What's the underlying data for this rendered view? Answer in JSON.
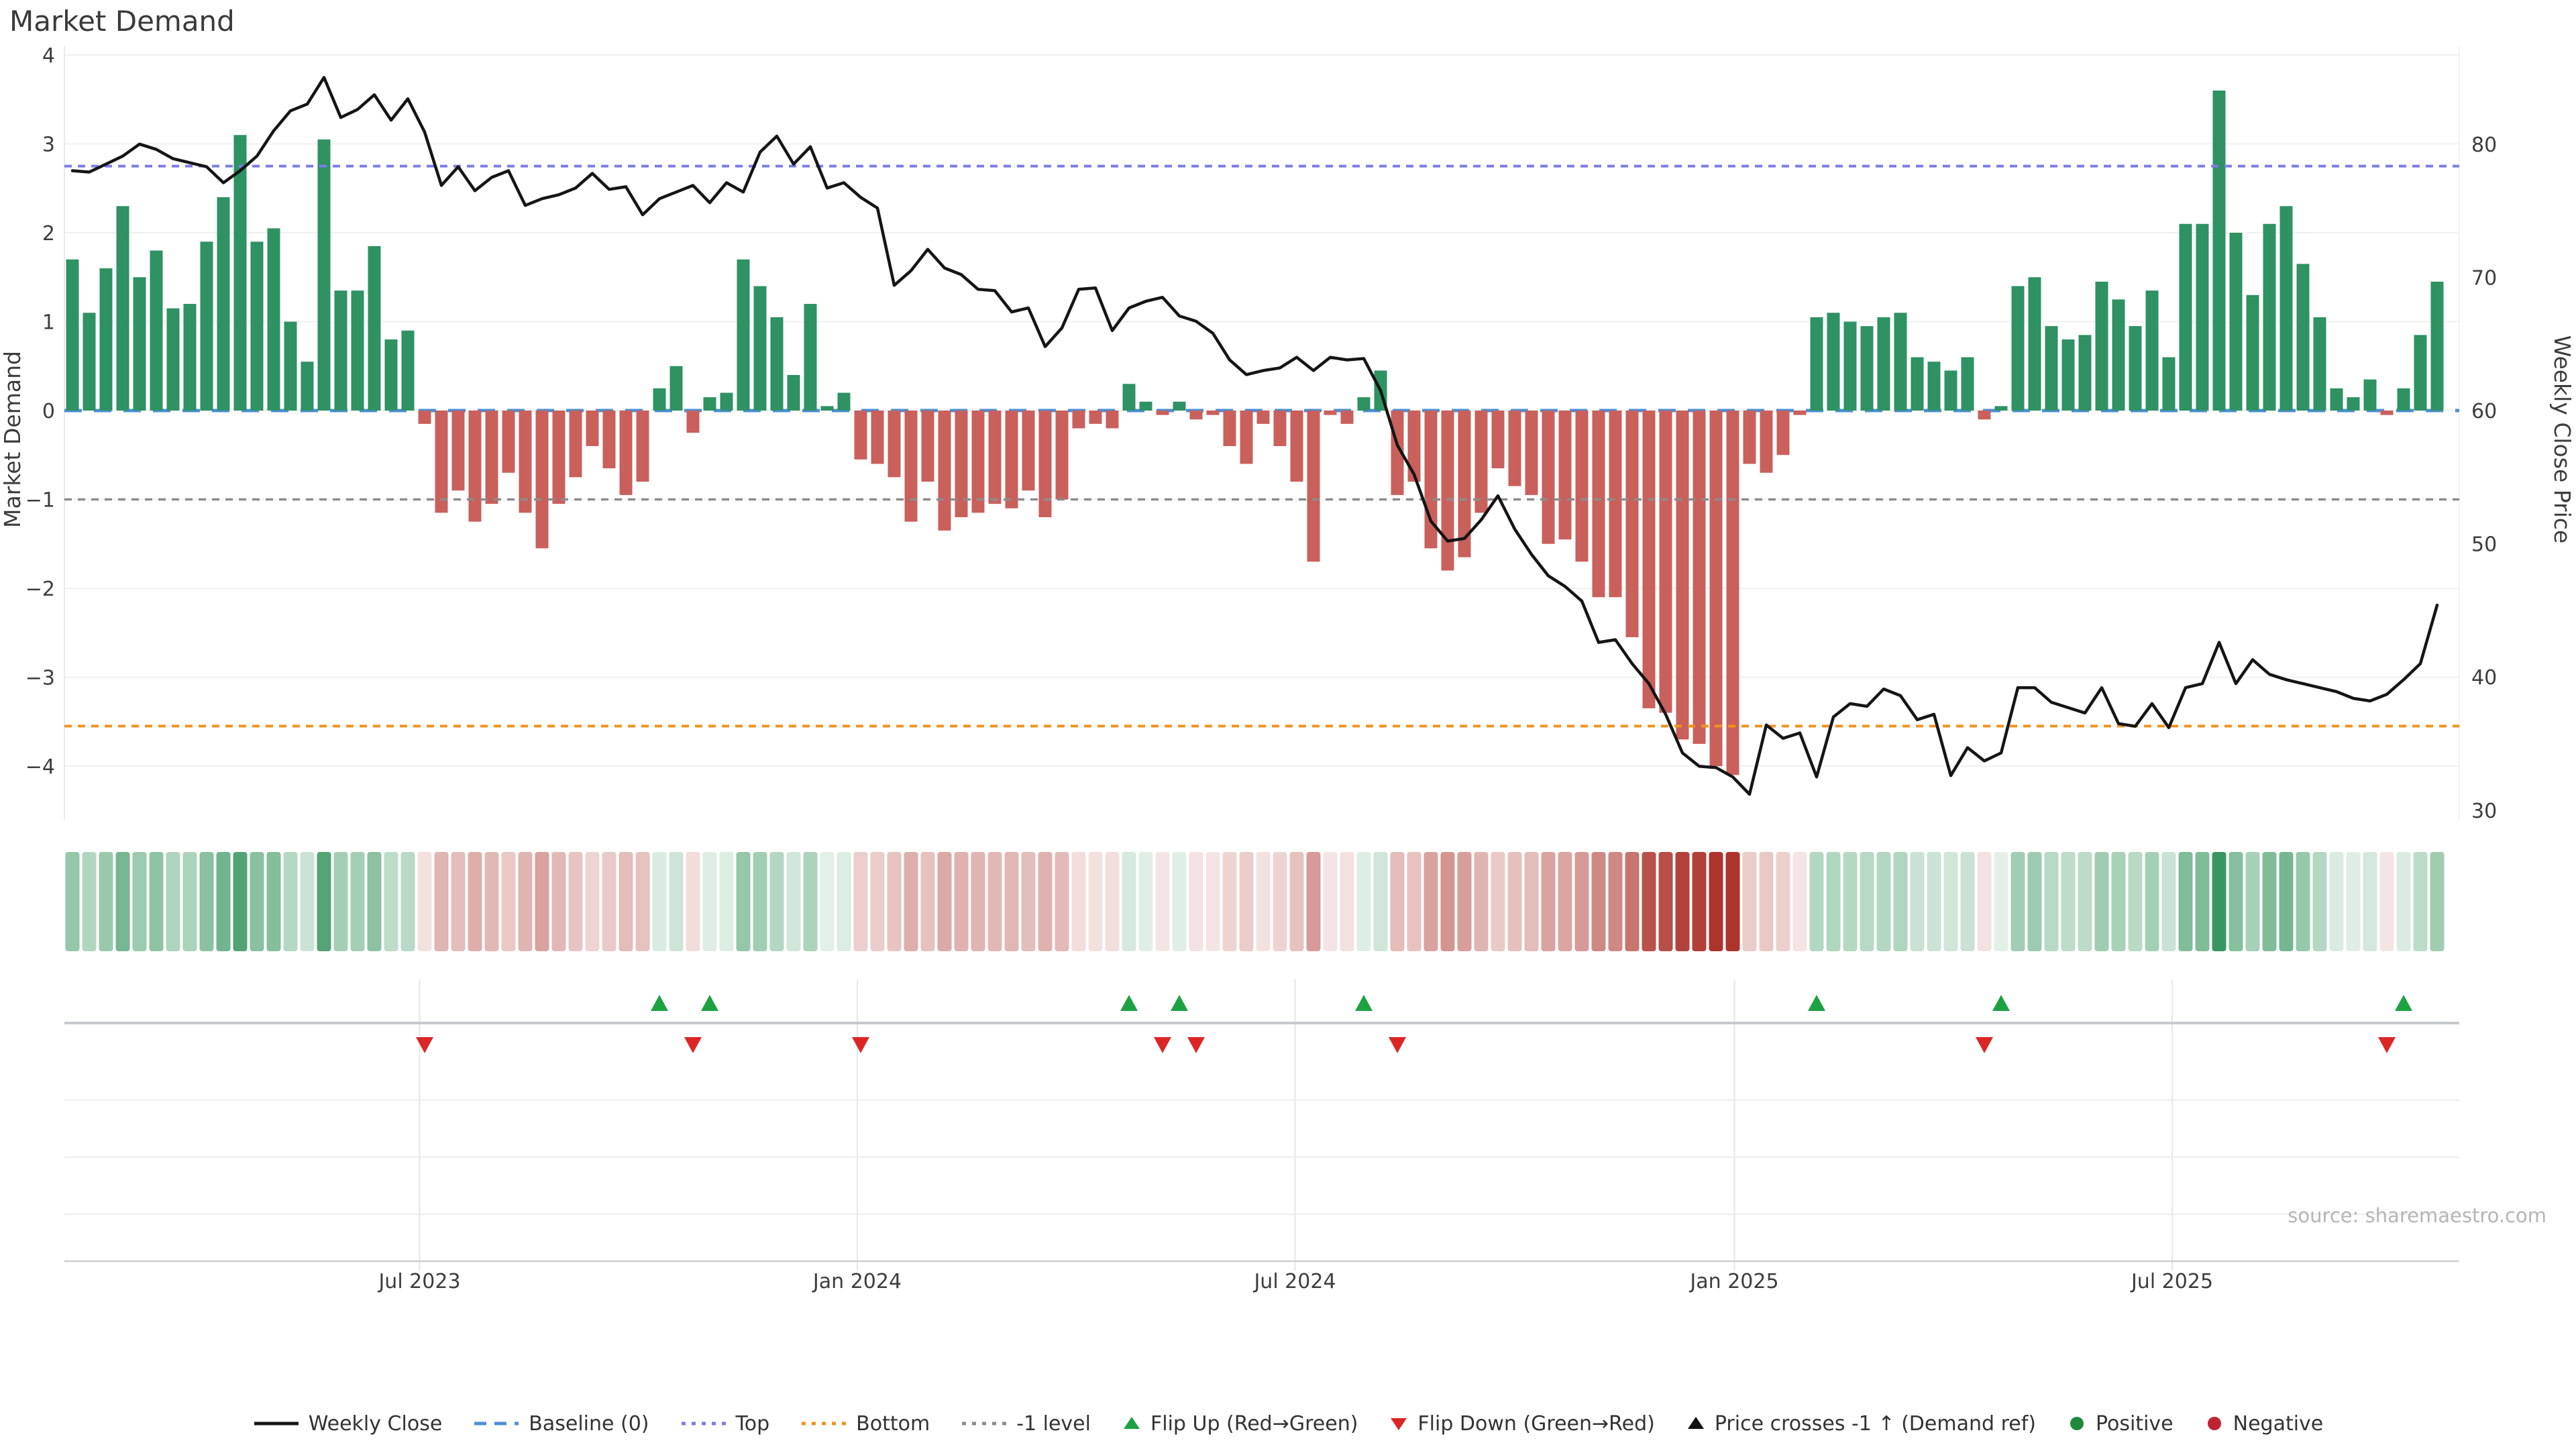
{
  "title": "Market Demand",
  "source_note": "source: sharemaestro.com",
  "colors": {
    "background": "#ffffff",
    "bar_positive": "#2E9263",
    "bar_negative": "#C9605C",
    "price_line": "#151515",
    "baseline": "#4C8FD6",
    "top_line": "#7B7CE8",
    "bottom_line": "#F2921D",
    "minus_one_line": "#8C8C8C",
    "flip_up": "#1CA241",
    "flip_down": "#DC2626",
    "price_cross": "#111111",
    "positive_dot": "#1E8A3A",
    "negative_dot": "#BF2330",
    "grid": "#F0F0F0",
    "subplot_grid": "#E6E6E6",
    "subplot_axis": "#CFCFCF",
    "subplot_divider": "#C6CACC",
    "heat_green_rgb": "38,140,80",
    "heat_red_rgb": "172,52,44"
  },
  "chart_data": {
    "type": "bar+line",
    "title": "Market Demand",
    "ylabel_left": "Market Demand",
    "ylabel_right": "Weekly Close Price",
    "yticks_left": [
      4,
      3,
      2,
      1,
      0,
      -1,
      -2,
      -3,
      -4
    ],
    "yticks_right": [
      80,
      70,
      60,
      50,
      40,
      30
    ],
    "ylim_left": [
      -4.6,
      4.1
    ],
    "ylim_right": [
      28.5,
      86.0
    ],
    "x_ticks": {
      "labels": [
        "Jul 2023",
        "Jan 2024",
        "Jul 2024",
        "Jan 2025",
        "Jul 2025"
      ],
      "week_positions": [
        20.7,
        46.8,
        72.9,
        99.1,
        125.2
      ]
    },
    "ref_lines": {
      "baseline": 0,
      "top": 2.75,
      "bottom": -3.55,
      "minus_one": -1
    },
    "weeks": 142,
    "series": [
      {
        "name": "Market Demand",
        "type": "bar",
        "axis": "left",
        "values": [
          1.7,
          1.1,
          1.6,
          2.3,
          1.5,
          1.8,
          1.15,
          1.2,
          1.9,
          2.4,
          3.1,
          1.9,
          2.05,
          1.0,
          0.55,
          3.05,
          1.35,
          1.35,
          1.85,
          0.8,
          0.9,
          -0.15,
          -1.15,
          -0.9,
          -1.25,
          -1.05,
          -0.7,
          -1.15,
          -1.55,
          -1.05,
          -0.75,
          -0.4,
          -0.65,
          -0.95,
          -0.8,
          0.25,
          0.5,
          -0.25,
          0.15,
          0.2,
          1.7,
          1.4,
          1.05,
          0.4,
          1.2,
          0.05,
          0.2,
          -0.55,
          -0.6,
          -0.75,
          -1.25,
          -0.8,
          -1.35,
          -1.2,
          -1.15,
          -1.05,
          -1.1,
          -0.9,
          -1.2,
          -1.0,
          -0.2,
          -0.15,
          -0.2,
          0.3,
          0.1,
          -0.05,
          0.1,
          -0.1,
          -0.05,
          -0.4,
          -0.6,
          -0.15,
          -0.4,
          -0.8,
          -1.7,
          -0.05,
          -0.15,
          0.15,
          0.45,
          -0.95,
          -0.8,
          -1.55,
          -1.8,
          -1.65,
          -1.15,
          -0.65,
          -0.85,
          -0.95,
          -1.5,
          -1.45,
          -1.7,
          -2.1,
          -2.1,
          -2.55,
          -3.35,
          -3.4,
          -3.7,
          -3.75,
          -4.0,
          -4.1,
          -0.6,
          -0.7,
          -0.5,
          -0.05,
          1.05,
          1.1,
          1.0,
          0.95,
          1.05,
          1.1,
          0.6,
          0.55,
          0.45,
          0.6,
          -0.1,
          0.05,
          1.4,
          1.5,
          0.95,
          0.8,
          0.85,
          1.45,
          1.25,
          0.95,
          1.35,
          0.6,
          2.1,
          2.1,
          3.6,
          2.0,
          1.3,
          2.1,
          2.3,
          1.65,
          1.05,
          0.25,
          0.15,
          0.35,
          -0.05,
          0.25,
          0.85,
          1.45
        ]
      },
      {
        "name": "Weekly Close",
        "type": "line",
        "axis": "right",
        "values": [
          78.0,
          77.9,
          78.5,
          79.1,
          80.0,
          79.6,
          78.9,
          78.6,
          78.3,
          77.1,
          78.0,
          79.1,
          81.0,
          82.5,
          83.0,
          85.0,
          82.0,
          82.6,
          83.7,
          81.8,
          83.4,
          80.9,
          76.9,
          78.3,
          76.5,
          77.5,
          78.0,
          75.4,
          75.9,
          76.2,
          76.7,
          77.8,
          76.6,
          76.8,
          74.7,
          75.9,
          76.4,
          76.9,
          75.6,
          77.1,
          76.4,
          79.4,
          80.6,
          78.5,
          79.8,
          76.7,
          77.1,
          76.0,
          75.2,
          69.4,
          70.5,
          72.1,
          70.7,
          70.2,
          69.1,
          69.0,
          67.4,
          67.7,
          64.8,
          66.2,
          69.1,
          69.2,
          66.0,
          67.7,
          68.2,
          68.5,
          67.1,
          66.7,
          65.8,
          63.8,
          62.7,
          63.0,
          63.2,
          64.0,
          63.0,
          64.0,
          63.8,
          63.9,
          61.5,
          57.4,
          55.2,
          51.7,
          50.2,
          50.4,
          51.8,
          53.6,
          51.1,
          49.2,
          47.6,
          46.8,
          45.7,
          42.6,
          42.8,
          41.0,
          39.5,
          37.2,
          34.3,
          33.3,
          33.2,
          32.5,
          31.2,
          36.4,
          35.4,
          35.8,
          32.5,
          37.0,
          38.0,
          37.8,
          39.1,
          38.6,
          36.8,
          37.2,
          32.6,
          34.7,
          33.7,
          34.3,
          39.2,
          39.2,
          38.1,
          37.7,
          37.3,
          39.2,
          36.5,
          36.3,
          38.0,
          36.2,
          39.2,
          39.5,
          42.6,
          39.5,
          41.3,
          40.2,
          39.8,
          39.5,
          39.2,
          38.9,
          38.4,
          38.2,
          38.7,
          39.8,
          41.0,
          45.4
        ]
      }
    ],
    "flip_up_weeks": [
      35,
      38,
      63,
      66,
      77,
      104,
      115,
      139
    ],
    "flip_down_weeks": [
      21,
      37,
      47,
      65,
      67,
      79,
      114,
      138
    ],
    "price_cross_weeks": []
  },
  "legend": [
    {
      "label": "Weekly Close",
      "swatch": "line",
      "color": "#151515",
      "dash": ""
    },
    {
      "label": "Baseline (0)",
      "swatch": "line",
      "color": "#4C8FD6",
      "dash": "18 12"
    },
    {
      "label": "Top",
      "swatch": "line",
      "color": "#7B7CE8",
      "dash": "6 9"
    },
    {
      "label": "Bottom",
      "swatch": "line",
      "color": "#F2921D",
      "dash": "6 9"
    },
    {
      "label": "-1 level",
      "swatch": "line",
      "color": "#8C8C8C",
      "dash": "6 9"
    },
    {
      "label": "Flip Up (Red→Green)",
      "swatch": "triangle-up",
      "color": "#1CA241"
    },
    {
      "label": "Flip Down (Green→Red)",
      "swatch": "triangle-down",
      "color": "#DC2626"
    },
    {
      "label": "Price crosses -1 ↑ (Demand ref)",
      "swatch": "triangle-up",
      "color": "#111111"
    },
    {
      "label": "Positive",
      "swatch": "circle",
      "color": "#1E8A3A"
    },
    {
      "label": "Negative",
      "swatch": "circle",
      "color": "#BF2330"
    }
  ]
}
